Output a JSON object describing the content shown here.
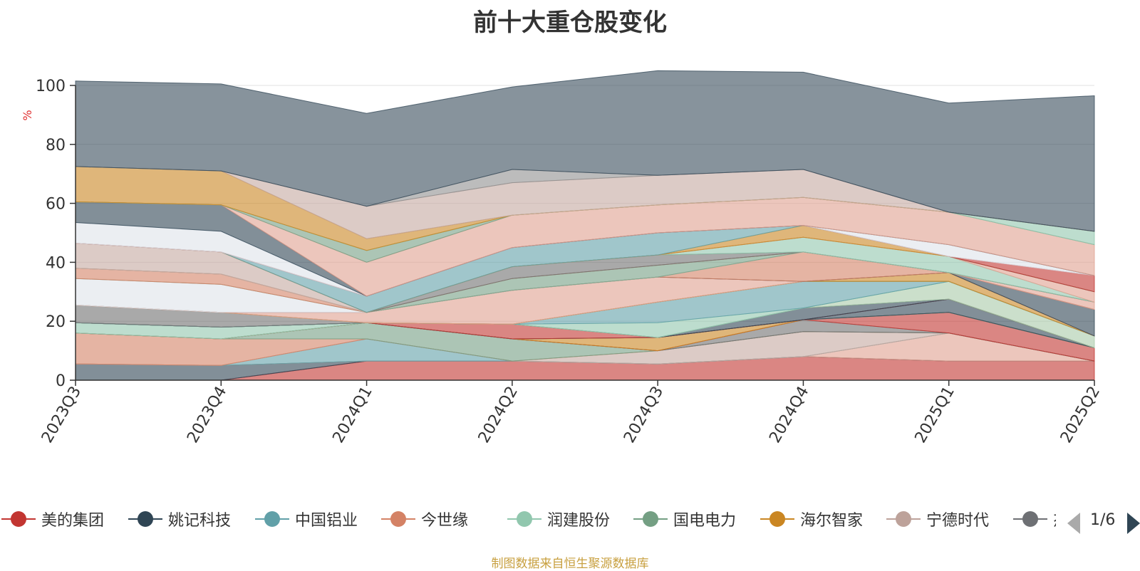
{
  "chart_data": {
    "type": "area",
    "stacked": true,
    "title": "前十大重仓股变化",
    "ylabel": "%",
    "ylim": [
      0,
      100
    ],
    "yticks": [
      0,
      20,
      40,
      60,
      80,
      100
    ],
    "categories": [
      "2023Q3",
      "2023Q4",
      "2024Q1",
      "2024Q2",
      "2024Q3",
      "2024Q4",
      "2025Q1",
      "2025Q2"
    ],
    "series": [
      {
        "name": "美的集团",
        "color": "#c23531",
        "values": [
          0,
          0,
          6.5,
          6.5,
          5.5,
          8,
          6.5,
          6.5
        ]
      },
      {
        "name": "",
        "color": "#2f4554",
        "values": [
          5.5,
          5,
          0,
          0,
          0,
          0,
          0,
          0
        ]
      },
      {
        "name": "",
        "color": "#e0a090",
        "values": [
          0,
          0,
          0,
          0,
          0,
          0,
          9.5,
          0
        ]
      },
      {
        "name": "中国铝业",
        "color": "#61a0a8",
        "values": [
          0,
          0,
          7.5,
          0,
          0,
          0,
          0,
          0
        ]
      },
      {
        "name": "",
        "color": "#c4a9a0",
        "values": [
          0,
          0,
          0,
          0,
          4.5,
          8.5,
          0,
          0
        ]
      },
      {
        "name": "今世缘",
        "color": "#d48265",
        "values": [
          10.5,
          9,
          0,
          0,
          0,
          0,
          0,
          0
        ]
      },
      {
        "name": "国电电力",
        "color": "#749f83",
        "values": [
          0,
          0,
          5.5,
          7.5,
          0,
          0,
          0,
          0
        ]
      },
      {
        "name": "",
        "color": "#707070",
        "values": [
          0,
          0,
          0,
          0,
          0,
          4,
          0,
          0
        ]
      },
      {
        "name": "",
        "color": "#c23531",
        "values": [
          0,
          0,
          0,
          0,
          0,
          0,
          7,
          4.5
        ]
      },
      {
        "name": "海尔智家",
        "color": "#ca8622",
        "values": [
          0,
          0,
          0,
          0,
          4.5,
          0,
          0,
          0
        ]
      },
      {
        "name": "",
        "color": "#8f8f8f",
        "values": [
          0,
          0,
          0,
          0,
          0,
          0,
          0,
          0
        ]
      },
      {
        "name": "润建股份",
        "color": "#91c7ae",
        "values": [
          3.5,
          4,
          0,
          0,
          0,
          0,
          0,
          0
        ]
      },
      {
        "name": "",
        "color": "#2f4554",
        "values": [
          0,
          0,
          0,
          0,
          0,
          0,
          4.5,
          0
        ]
      },
      {
        "name": "",
        "color": "#c23531",
        "values": [
          0,
          0,
          0,
          5,
          0,
          0,
          0,
          0
        ]
      },
      {
        "name": "",
        "color": "#2f4554",
        "values": [
          0,
          0,
          0,
          0,
          0,
          4,
          0,
          0
        ]
      },
      {
        "name": "",
        "color": "#a8c9a8",
        "values": [
          0,
          0,
          0,
          0,
          0,
          0,
          6,
          4
        ]
      },
      {
        "name": "",
        "color": "#91c7ae",
        "values": [
          0,
          0,
          0,
          0,
          5,
          0,
          0,
          0
        ]
      },
      {
        "name": "",
        "color": "#61a0a8",
        "values": [
          0,
          0,
          0,
          0,
          7,
          9,
          0,
          0
        ]
      },
      {
        "name": "",
        "color": "#707070",
        "values": [
          6,
          5,
          0,
          0,
          0,
          0,
          0,
          0
        ]
      },
      {
        "name": "",
        "color": "#91c7ae",
        "values": [
          0,
          0,
          0,
          0,
          0,
          0,
          0,
          0
        ]
      },
      {
        "name": "",
        "color": "#ca8622",
        "values": [
          0,
          0,
          0,
          0,
          0,
          0,
          3,
          0
        ]
      },
      {
        "name": "",
        "color": "#e0a090",
        "values": [
          0,
          0,
          3.5,
          11.5,
          8.5,
          0,
          0,
          0
        ]
      },
      {
        "name": "",
        "color": "#2f4554",
        "values": [
          0,
          0,
          0,
          0,
          0,
          0,
          0,
          9
        ]
      },
      {
        "name": "",
        "color": "#d48265",
        "values": [
          0,
          0,
          0,
          0,
          0,
          10,
          0,
          0
        ]
      },
      {
        "name": "",
        "color": "#e0a090",
        "values": [
          0,
          0,
          0,
          0,
          0,
          0,
          0,
          2.5
        ]
      },
      {
        "name": "",
        "color": "#dde3ea",
        "values": [
          9,
          9.5,
          0,
          0,
          0,
          0,
          0,
          0
        ]
      },
      {
        "name": "",
        "color": "#749f83",
        "values": [
          0,
          0,
          0,
          4,
          4,
          0,
          0,
          0
        ]
      },
      {
        "name": "",
        "color": "#d48265",
        "values": [
          3.5,
          3.5,
          0,
          0,
          0,
          0,
          0,
          0
        ]
      },
      {
        "name": "",
        "color": "#707070",
        "values": [
          0,
          0,
          0,
          4,
          3.5,
          0,
          0,
          0
        ]
      },
      {
        "name": "",
        "color": "#91c7ae",
        "values": [
          0,
          0,
          0,
          0,
          0,
          5,
          5.5,
          0
        ]
      },
      {
        "name": "",
        "color": "#e0a090",
        "values": [
          0,
          0,
          0,
          0,
          0,
          0,
          0,
          3.5
        ]
      },
      {
        "name": "",
        "color": "#c4a9a0",
        "values": [
          8.5,
          7.5,
          0,
          0,
          0,
          0,
          0,
          0
        ]
      },
      {
        "name": "",
        "color": "#ca8622",
        "values": [
          0,
          0,
          0,
          0,
          0,
          4,
          0,
          0
        ]
      },
      {
        "name": "",
        "color": "#61a0a8",
        "values": [
          0,
          0,
          5.5,
          6.5,
          7.5,
          0,
          0,
          0
        ]
      },
      {
        "name": "",
        "color": "#c23531",
        "values": [
          0,
          0,
          0,
          0,
          0,
          0,
          0,
          5.5
        ]
      },
      {
        "name": "",
        "color": "#dde3ea",
        "values": [
          7,
          7,
          0,
          0,
          0,
          0,
          4,
          0
        ]
      },
      {
        "name": "",
        "color": "#2f4554",
        "values": [
          7,
          9,
          0,
          0,
          0,
          0,
          0,
          0
        ]
      },
      {
        "name": "",
        "color": "#e0a090",
        "values": [
          0,
          0,
          11.5,
          11,
          9.5,
          9.5,
          11,
          10.5
        ]
      },
      {
        "name": "",
        "color": "#749f83",
        "values": [
          0,
          0,
          4,
          0,
          0,
          0,
          0,
          0
        ]
      },
      {
        "name": "",
        "color": "#91c7ae",
        "values": [
          0,
          0,
          0,
          0,
          0,
          0,
          0,
          4.5
        ]
      },
      {
        "name": "",
        "color": "#ca8622",
        "values": [
          12,
          11.5,
          4,
          0,
          0,
          0,
          0,
          0
        ]
      },
      {
        "name": "宁德时代",
        "color": "#c4a9a0",
        "values": [
          0,
          0,
          11,
          11,
          10,
          9.5,
          0,
          0
        ]
      },
      {
        "name": "",
        "color": "#8f8f8f",
        "values": [
          0,
          0,
          0,
          4.5,
          0,
          0,
          0,
          0
        ]
      },
      {
        "name": "",
        "color": "#374b5a",
        "values": [
          29,
          29.5,
          31.5,
          28,
          35.5,
          33,
          37,
          46
        ]
      }
    ]
  },
  "legend": {
    "items": [
      {
        "label": "美的集团",
        "color": "#c23531"
      },
      {
        "label": "姚记科技",
        "color": "#2f4554"
      },
      {
        "label": "中国铝业",
        "color": "#61a0a8"
      },
      {
        "label": "今世缘",
        "color": "#d48265"
      },
      {
        "label": "润建股份",
        "color": "#91c7ae"
      },
      {
        "label": "国电电力",
        "color": "#749f83"
      },
      {
        "label": "海尔智家",
        "color": "#ca8622"
      },
      {
        "label": "宁德时代",
        "color": "#bda29a"
      },
      {
        "label": "杰",
        "color": "#6e7074"
      }
    ],
    "page_indicator": "1/6"
  },
  "source_note": "制图数据来自恒生聚源数据库"
}
